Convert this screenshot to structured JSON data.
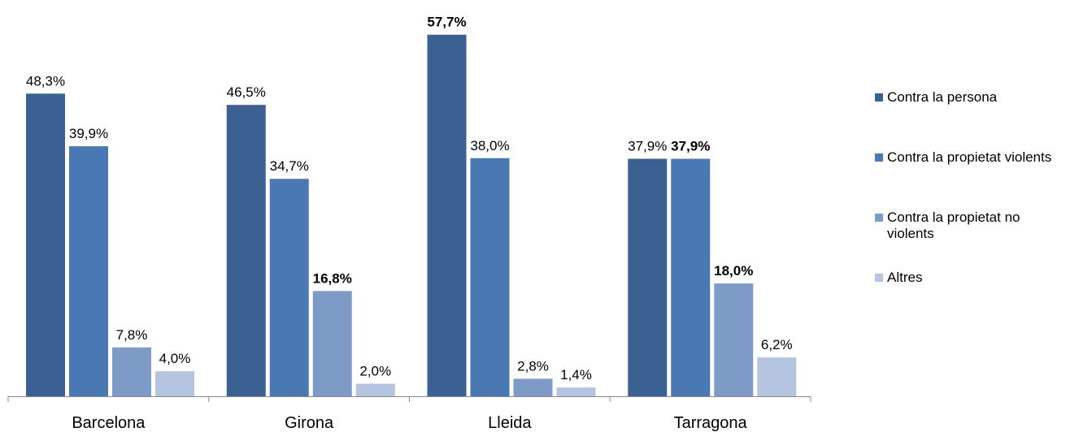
{
  "chart_data": {
    "type": "bar",
    "categories": [
      "Barcelona",
      "Girona",
      "Lleida",
      "Tarragona"
    ],
    "ylim": [
      0,
      60
    ],
    "legend": "right",
    "series": [
      {
        "name": "Contra la persona",
        "color": "#3b6193",
        "values": [
          48.3,
          46.5,
          57.7,
          37.9
        ],
        "value_labels": [
          "48,3%",
          "46,5%",
          "57,7%",
          "37,9%"
        ],
        "bold": [
          false,
          false,
          true,
          false
        ]
      },
      {
        "name": "Contra la propietat violents",
        "color": "#4a78b2",
        "values": [
          39.9,
          34.7,
          38.0,
          37.9
        ],
        "value_labels": [
          "39,9%",
          "34,7%",
          "38,0%",
          "37,9%"
        ],
        "bold": [
          false,
          false,
          false,
          true
        ]
      },
      {
        "name": "Contra la propietat no violents",
        "color": "#7e9bc8",
        "values": [
          7.8,
          16.8,
          2.8,
          18.0
        ],
        "value_labels": [
          "7,8%",
          "16,8%",
          "2,8%",
          "18,0%"
        ],
        "bold": [
          false,
          true,
          false,
          true
        ]
      },
      {
        "name": "Altres",
        "color": "#b5c4de",
        "values": [
          4.0,
          2.0,
          1.4,
          6.2
        ],
        "value_labels": [
          "4,0%",
          "2,0%",
          "1,4%",
          "6,2%"
        ],
        "bold": [
          false,
          false,
          false,
          false
        ]
      }
    ]
  }
}
